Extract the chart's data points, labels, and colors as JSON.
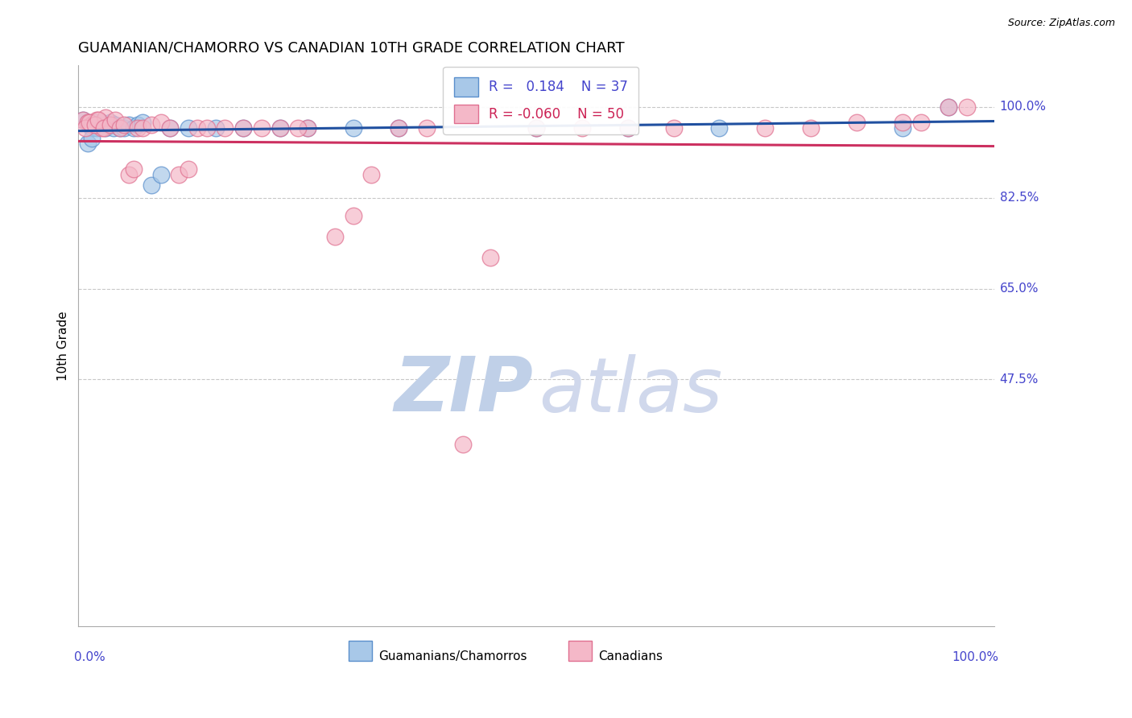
{
  "title": "GUAMANIAN/CHAMORRO VS CANADIAN 10TH GRADE CORRELATION CHART",
  "source": "Source: ZipAtlas.com",
  "ylabel": "10th Grade",
  "blue_R": 0.184,
  "blue_N": 37,
  "pink_R": -0.06,
  "pink_N": 50,
  "blue_label": "Guamanians/Chamorros",
  "pink_label": "Canadians",
  "blue_fill": "#a8c8e8",
  "pink_fill": "#f4b8c8",
  "blue_edge": "#5a8fcc",
  "pink_edge": "#e07090",
  "trend_blue": "#2050a0",
  "trend_pink": "#cc3060",
  "ytick_labels": [
    "100.0%",
    "82.5%",
    "65.0%",
    "47.5%"
  ],
  "ytick_values": [
    1.0,
    0.825,
    0.65,
    0.475
  ],
  "grid_color": "#c8c8c8",
  "axis_label_color": "#4444cc",
  "watermark_zip_color": "#c0d0e8",
  "watermark_atlas_color": "#d0d8ec",
  "blue_scatter_x": [
    0.005,
    0.01,
    0.012,
    0.015,
    0.018,
    0.02,
    0.022,
    0.025,
    0.028,
    0.03,
    0.032,
    0.035,
    0.038,
    0.04,
    0.045,
    0.01,
    0.015,
    0.05,
    0.055,
    0.06,
    0.065,
    0.07,
    0.08,
    0.09,
    0.1,
    0.12,
    0.15,
    0.18,
    0.22,
    0.25,
    0.3,
    0.35,
    0.5,
    0.6,
    0.7,
    0.9,
    0.95
  ],
  "blue_scatter_y": [
    0.975,
    0.97,
    0.965,
    0.96,
    0.97,
    0.96,
    0.965,
    0.97,
    0.965,
    0.96,
    0.965,
    0.97,
    0.96,
    0.965,
    0.96,
    0.93,
    0.94,
    0.96,
    0.965,
    0.96,
    0.965,
    0.97,
    0.85,
    0.87,
    0.96,
    0.96,
    0.96,
    0.96,
    0.96,
    0.96,
    0.96,
    0.96,
    0.96,
    0.96,
    0.96,
    0.96,
    1.0
  ],
  "pink_scatter_x": [
    0.005,
    0.01,
    0.015,
    0.02,
    0.025,
    0.03,
    0.008,
    0.012,
    0.018,
    0.022,
    0.028,
    0.035,
    0.04,
    0.045,
    0.05,
    0.055,
    0.06,
    0.065,
    0.07,
    0.08,
    0.09,
    0.1,
    0.11,
    0.12,
    0.13,
    0.14,
    0.16,
    0.2,
    0.25,
    0.22,
    0.3,
    0.35,
    0.38,
    0.45,
    0.5,
    0.55,
    0.6,
    0.65,
    0.75,
    0.8,
    0.85,
    0.9,
    0.92,
    0.95,
    0.97,
    0.28,
    0.32,
    0.42,
    0.18,
    0.24
  ],
  "pink_scatter_y": [
    0.975,
    0.97,
    0.965,
    0.975,
    0.96,
    0.98,
    0.96,
    0.97,
    0.965,
    0.975,
    0.96,
    0.965,
    0.975,
    0.96,
    0.965,
    0.87,
    0.88,
    0.96,
    0.96,
    0.965,
    0.97,
    0.96,
    0.87,
    0.88,
    0.96,
    0.96,
    0.96,
    0.96,
    0.96,
    0.96,
    0.79,
    0.96,
    0.96,
    0.71,
    0.96,
    0.96,
    0.96,
    0.96,
    0.96,
    0.96,
    0.97,
    0.97,
    0.97,
    1.0,
    1.0,
    0.75,
    0.87,
    0.35,
    0.96,
    0.96
  ]
}
